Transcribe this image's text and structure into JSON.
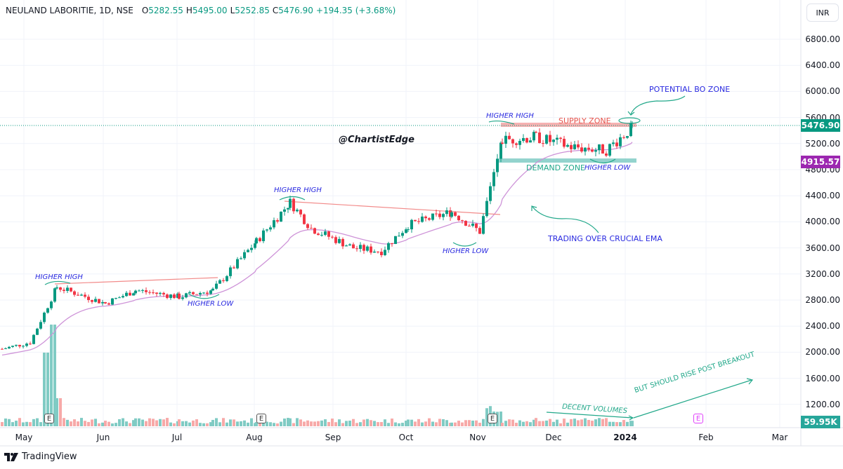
{
  "header": {
    "symbol": "NEULAND LABORITIE, 1D, NSE",
    "open_label": "O",
    "open": "5282.55",
    "high_label": "H",
    "high": "5495.00",
    "low_label": "L",
    "low": "5252.85",
    "close_label": "C",
    "close": "5476.90",
    "change": "+194.35 (+3.68%)",
    "currency": "INR"
  },
  "price_axis": [
    "6800.00",
    "6400.00",
    "6000.00",
    "5600.00",
    "5200.00",
    "4800.00",
    "4400.00",
    "4000.00",
    "3600.00",
    "3200.00",
    "2800.00",
    "2400.00",
    "2000.00",
    "1600.00",
    "1200.00"
  ],
  "price_tags": {
    "last_price": "5476.90",
    "ema_value": "4915.57",
    "volume": "59.95K"
  },
  "time_axis": [
    "May",
    "Jun",
    "Jul",
    "Aug",
    "Sep",
    "Oct",
    "Nov",
    "Dec",
    "2024",
    "Feb",
    "Mar"
  ],
  "annotations": {
    "watermark": "@ChartistEdge",
    "higher_high_1": "HIGHER HIGH",
    "higher_high_2": "HIGHER HIGH",
    "higher_high_3": "HIGHER HIGH",
    "higher_low_1": "HIGHER LOW",
    "higher_low_2": "HIGHER LOW",
    "higher_low_3": "HIGHER LOW",
    "supply_zone": "SUPPLY ZONE",
    "demand_zone": "DEMAND ZONE",
    "potential_bo": "POTENTIAL BO ZONE",
    "trading_over_ema": "TRADING OVER CRUCIAL EMA",
    "decent_volumes": "DECENT VOLUMES",
    "rise_post_breakout": "BUT SHOULD RISE POST BREAKOUT",
    "earnings_badge": "E"
  },
  "footer": {
    "brand": "TradingView"
  },
  "colors": {
    "up": "#089981",
    "down": "#f23645",
    "ema": "#ce93d8",
    "supply": "#f7a9a8",
    "demand": "#80cbc4",
    "annotation_blue": "#2a2ae0",
    "annotation_green": "#22a88a",
    "ema_tag": "#9c27b0"
  },
  "chart_data": {
    "type": "candlestick",
    "title": "NEULAND LABORITIE, 1D, NSE",
    "ylabel": "INR",
    "ylim": [
      1000,
      7000
    ],
    "x_ticks": [
      "May",
      "Jun",
      "Jul",
      "Aug",
      "Sep",
      "Oct",
      "Nov",
      "Dec",
      "2024",
      "Feb",
      "Mar"
    ],
    "y_ticks": [
      1200,
      1600,
      2000,
      2400,
      2800,
      3200,
      3600,
      4000,
      4400,
      4800,
      5200,
      5600,
      6000,
      6400,
      6800
    ],
    "last": {
      "open": 5282.55,
      "high": 5495.0,
      "low": 5252.85,
      "close": 5476.9,
      "change": 194.35,
      "change_pct": 3.68,
      "volume": "59.95K"
    },
    "ema_last": 4915.57,
    "approx_closes": [
      {
        "period": "early May",
        "close": 2050
      },
      {
        "period": "mid May",
        "close": 2150
      },
      {
        "period": "late May",
        "close": 3000
      },
      {
        "period": "Jun",
        "close": 2750
      },
      {
        "period": "mid Jun",
        "close": 2950
      },
      {
        "period": "Jul",
        "close": 2850
      },
      {
        "period": "mid Jul",
        "close": 2950
      },
      {
        "period": "early Aug",
        "close": 3700
      },
      {
        "period": "mid Aug",
        "close": 4300
      },
      {
        "period": "late Aug",
        "close": 3900
      },
      {
        "period": "Sep",
        "close": 3600
      },
      {
        "period": "mid Sep",
        "close": 3550
      },
      {
        "period": "Oct",
        "close": 3950
      },
      {
        "period": "late Oct",
        "close": 4150
      },
      {
        "period": "early Nov",
        "close": 3850
      },
      {
        "period": "Nov breakout",
        "close": 5250
      },
      {
        "period": "late Nov",
        "close": 5300
      },
      {
        "period": "Dec",
        "close": 5150
      },
      {
        "period": "late Dec",
        "close": 5100
      },
      {
        "period": "early Jan",
        "close": 5476.9
      }
    ],
    "levels": {
      "supply_zone": [
        5420,
        5500
      ],
      "demand_zone": [
        4920,
        4980
      ],
      "trendline_1": {
        "from": 3020,
        "to": 3120
      },
      "trendline_2": {
        "from": 4330,
        "to": 4100
      }
    }
  }
}
